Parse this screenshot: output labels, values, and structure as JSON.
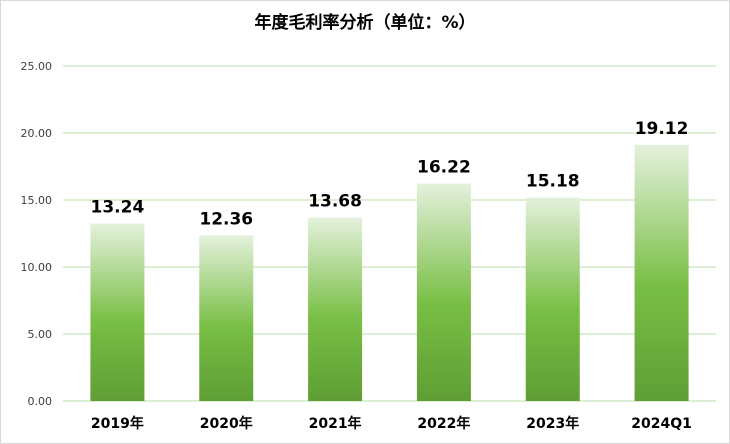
{
  "chart_data": {
    "type": "bar",
    "title": "年度毛利率分析（单位：%）",
    "categories": [
      "2019年",
      "2020年",
      "2021年",
      "2022年",
      "2023年",
      "2024Q1"
    ],
    "values": [
      13.24,
      12.36,
      13.68,
      16.22,
      15.18,
      19.12
    ],
    "value_labels": [
      "13.24",
      "12.36",
      "13.68",
      "16.22",
      "15.18",
      "19.12"
    ],
    "yticks": [
      "0.00",
      "5.00",
      "10.00",
      "15.00",
      "20.00",
      "25.00"
    ],
    "ylim": [
      0,
      25
    ],
    "xlabel": "",
    "ylabel": "",
    "grid": true,
    "legend": "none",
    "colors": {
      "bar_top": "#e4f1dc",
      "bar_mid": "#79bf45",
      "bar_bottom": "#5f9e35",
      "grid": "#b9dca8"
    }
  }
}
